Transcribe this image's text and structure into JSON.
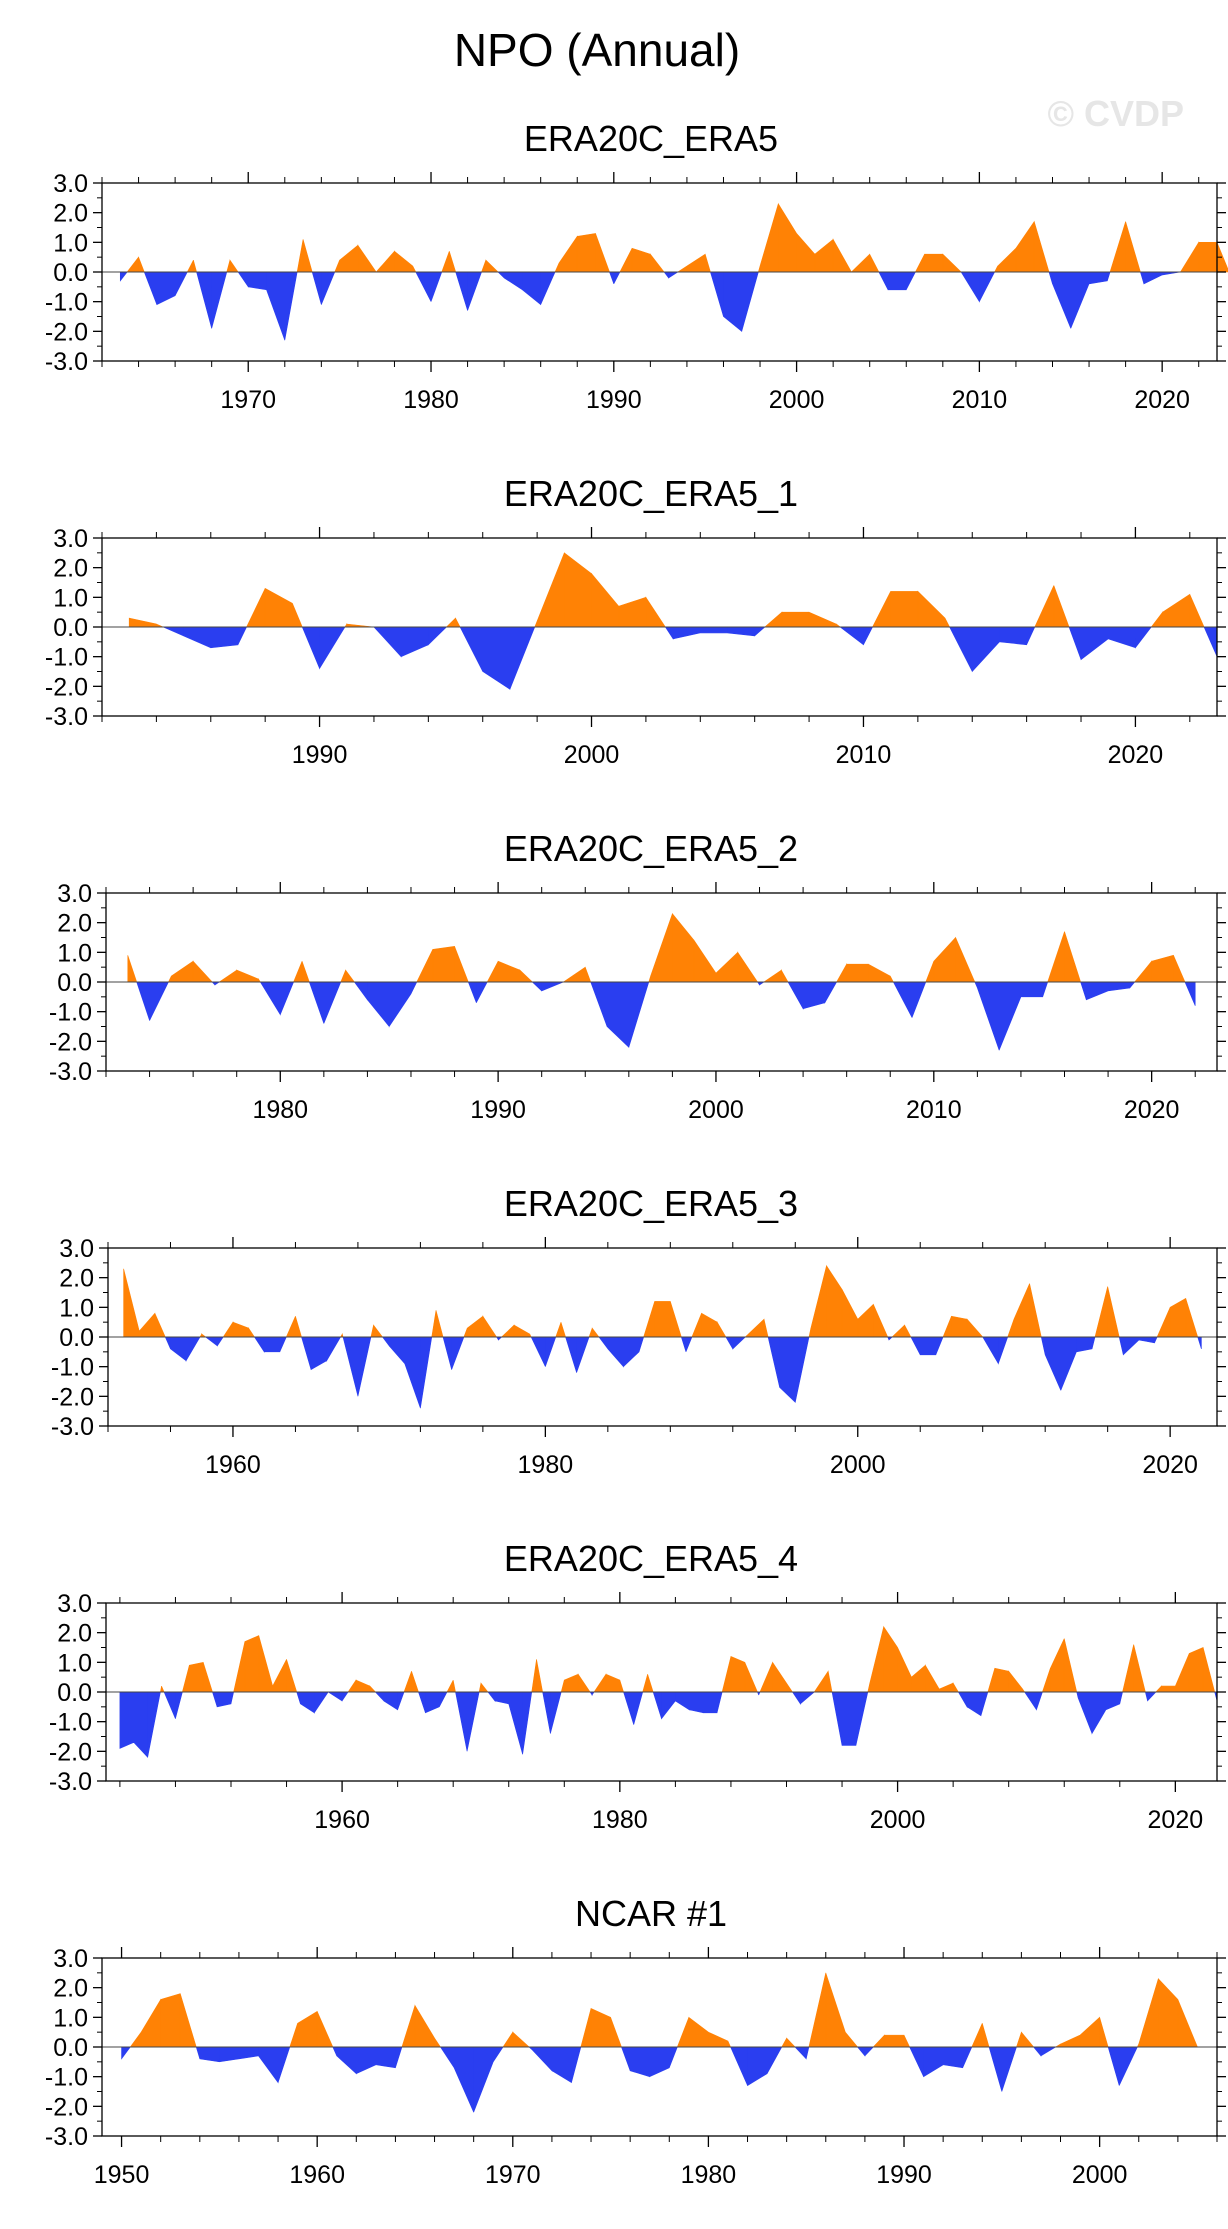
{
  "page": {
    "title": "NPO (Annual)",
    "watermark": "© CVDP"
  },
  "colors": {
    "positive": "#ff8205",
    "negative": "#2a3ef0",
    "axis": "#000000"
  },
  "chart_data": [
    {
      "type": "area",
      "title": "ERA20C_ERA5",
      "ylim": [
        -3,
        3
      ],
      "yticks": [
        "3.0",
        "2.0",
        "1.0",
        "0.0",
        "-1.0",
        "-2.0",
        "-3.0"
      ],
      "xlim": [
        1962,
        2023
      ],
      "xticks": [
        1970,
        1980,
        1990,
        2000,
        2010,
        2020
      ],
      "x_start": 1963,
      "values": [
        -0.3,
        0.5,
        -1.1,
        -0.8,
        0.4,
        -1.9,
        0.4,
        -0.5,
        -0.6,
        -2.3,
        1.1,
        -1.1,
        0.4,
        0.9,
        0.0,
        0.7,
        0.2,
        -1.0,
        0.7,
        -1.3,
        0.4,
        -0.2,
        -0.6,
        -1.1,
        0.3,
        1.2,
        1.3,
        -0.4,
        0.8,
        0.6,
        -0.2,
        0.2,
        0.6,
        -1.5,
        -2.0,
        0.2,
        2.3,
        1.3,
        0.6,
        1.1,
        0.0,
        0.6,
        -0.6,
        -0.6,
        0.6,
        0.6,
        0.0,
        -1.0,
        0.2,
        0.8,
        1.7,
        -0.4,
        -1.9,
        -0.4,
        -0.3,
        1.7,
        -0.4,
        -0.1,
        0.0,
        1.0,
        1.0,
        -0.5
      ]
    },
    {
      "type": "area",
      "title": "ERA20C_ERA5_1",
      "ylim": [
        -3,
        3
      ],
      "yticks": [
        "3.0",
        "2.0",
        "1.0",
        "0.0",
        "-1.0",
        "-2.0",
        "-3.0"
      ],
      "xlim": [
        1982,
        2023
      ],
      "xticks": [
        1990,
        2000,
        2010,
        2020
      ],
      "x_start": 1983,
      "values": [
        0.3,
        0.1,
        -0.3,
        -0.7,
        -0.6,
        1.3,
        0.8,
        -1.4,
        0.1,
        0.0,
        -1.0,
        -0.6,
        0.3,
        -1.5,
        -2.1,
        0.2,
        2.5,
        1.8,
        0.7,
        1.0,
        -0.4,
        -0.2,
        -0.2,
        -0.3,
        0.5,
        0.5,
        0.1,
        -0.6,
        1.2,
        1.2,
        0.3,
        -1.5,
        -0.5,
        -0.6,
        1.4,
        -1.1,
        -0.4,
        -0.7,
        0.5,
        1.1,
        -1.0
      ]
    },
    {
      "type": "area",
      "title": "ERA20C_ERA5_2",
      "ylim": [
        -3,
        3
      ],
      "yticks": [
        "3.0",
        "2.0",
        "1.0",
        "0.0",
        "-1.0",
        "-2.0",
        "-3.0"
      ],
      "xlim": [
        1972,
        2023
      ],
      "xticks": [
        1980,
        1990,
        2000,
        2010,
        2020
      ],
      "x_start": 1973,
      "values": [
        0.9,
        -1.3,
        0.2,
        0.7,
        -0.1,
        0.4,
        0.1,
        -1.1,
        0.7,
        -1.4,
        0.4,
        -0.6,
        -1.5,
        -0.4,
        1.1,
        1.2,
        -0.7,
        0.7,
        0.4,
        -0.3,
        0.0,
        0.5,
        -1.5,
        -2.2,
        0.2,
        2.3,
        1.4,
        0.3,
        1.0,
        -0.1,
        0.4,
        -0.9,
        -0.7,
        0.6,
        0.6,
        0.2,
        -1.2,
        0.7,
        1.5,
        -0.2,
        -2.3,
        -0.5,
        -0.5,
        1.7,
        -0.6,
        -0.3,
        -0.2,
        0.7,
        0.9,
        -0.8
      ]
    },
    {
      "type": "area",
      "title": "ERA20C_ERA5_3",
      "ylim": [
        -3,
        3
      ],
      "yticks": [
        "3.0",
        "2.0",
        "1.0",
        "0.0",
        "-1.0",
        "-2.0",
        "-3.0"
      ],
      "xlim": [
        1952,
        2023
      ],
      "xticks": [
        1960,
        1980,
        2000,
        2020
      ],
      "x_start": 1953,
      "values": [
        2.3,
        0.2,
        0.8,
        -0.4,
        -0.8,
        0.1,
        -0.3,
        0.5,
        0.3,
        -0.5,
        -0.5,
        0.7,
        -1.1,
        -0.8,
        0.1,
        -2.0,
        0.4,
        -0.3,
        -0.9,
        -2.4,
        0.9,
        -1.1,
        0.3,
        0.7,
        -0.1,
        0.4,
        0.1,
        -1.0,
        0.5,
        -1.2,
        0.3,
        -0.4,
        -1.0,
        -0.5,
        1.2,
        1.2,
        -0.5,
        0.8,
        0.5,
        -0.4,
        0.1,
        0.6,
        -1.7,
        -2.2,
        0.3,
        2.4,
        1.6,
        0.6,
        1.1,
        -0.1,
        0.4,
        -0.6,
        -0.6,
        0.7,
        0.6,
        0.0,
        -0.9,
        0.6,
        1.8,
        -0.6,
        -1.8,
        -0.5,
        -0.4,
        1.7,
        -0.6,
        -0.1,
        -0.2,
        1.0,
        1.3,
        -0.4
      ]
    },
    {
      "type": "area",
      "title": "ERA20C_ERA5_4",
      "ylim": [
        -3,
        3
      ],
      "yticks": [
        "3.0",
        "2.0",
        "1.0",
        "0.0",
        "-1.0",
        "-2.0",
        "-3.0"
      ],
      "xlim": [
        1943,
        2023
      ],
      "xticks": [
        1960,
        1980,
        2000,
        2020
      ],
      "x_start": 1944,
      "values": [
        -1.9,
        -1.7,
        -2.2,
        0.2,
        -0.9,
        0.9,
        1.0,
        -0.5,
        -0.4,
        1.7,
        1.9,
        0.2,
        1.1,
        -0.4,
        -0.7,
        0.0,
        -0.3,
        0.4,
        0.2,
        -0.3,
        -0.6,
        0.7,
        -0.7,
        -0.5,
        0.4,
        -2.0,
        0.3,
        -0.3,
        -0.4,
        -2.1,
        1.1,
        -1.4,
        0.4,
        0.6,
        -0.1,
        0.6,
        0.4,
        -1.1,
        0.6,
        -0.9,
        -0.3,
        -0.6,
        -0.7,
        -0.7,
        1.2,
        1.0,
        -0.1,
        1.0,
        0.3,
        -0.4,
        0.0,
        0.7,
        -1.8,
        -1.8,
        0.3,
        2.2,
        1.5,
        0.5,
        0.9,
        0.1,
        0.3,
        -0.5,
        -0.8,
        0.8,
        0.7,
        0.1,
        -0.6,
        0.8,
        1.8,
        -0.2,
        -1.4,
        -0.6,
        -0.4,
        1.6,
        -0.3,
        0.2,
        0.2,
        1.3,
        1.5,
        -0.3
      ]
    },
    {
      "type": "area",
      "title": "NCAR #1",
      "ylim": [
        -3,
        3
      ],
      "yticks": [
        "3.0",
        "2.0",
        "1.0",
        "0.0",
        "-1.0",
        "-2.0",
        "-3.0"
      ],
      "xlim": [
        1949,
        2006
      ],
      "xticks": [
        1950,
        1960,
        1970,
        1980,
        1990,
        2000
      ],
      "x_start": 1950,
      "values": [
        -0.4,
        0.5,
        1.6,
        1.8,
        -0.4,
        -0.5,
        -0.4,
        -0.3,
        -1.2,
        0.8,
        1.2,
        -0.3,
        -0.9,
        -0.6,
        -0.7,
        1.4,
        0.3,
        -0.7,
        -2.2,
        -0.5,
        0.5,
        -0.1,
        -0.8,
        -1.2,
        1.3,
        1.0,
        -0.8,
        -1.0,
        -0.7,
        1.0,
        0.5,
        0.2,
        -1.3,
        -0.9,
        0.3,
        -0.4,
        2.5,
        0.5,
        -0.3,
        0.4,
        0.4,
        -1.0,
        -0.6,
        -0.7,
        0.8,
        -1.5,
        0.5,
        -0.3,
        0.1,
        0.4,
        1.0,
        -1.3,
        0.1,
        2.3,
        1.6,
        0.0
      ]
    }
  ]
}
